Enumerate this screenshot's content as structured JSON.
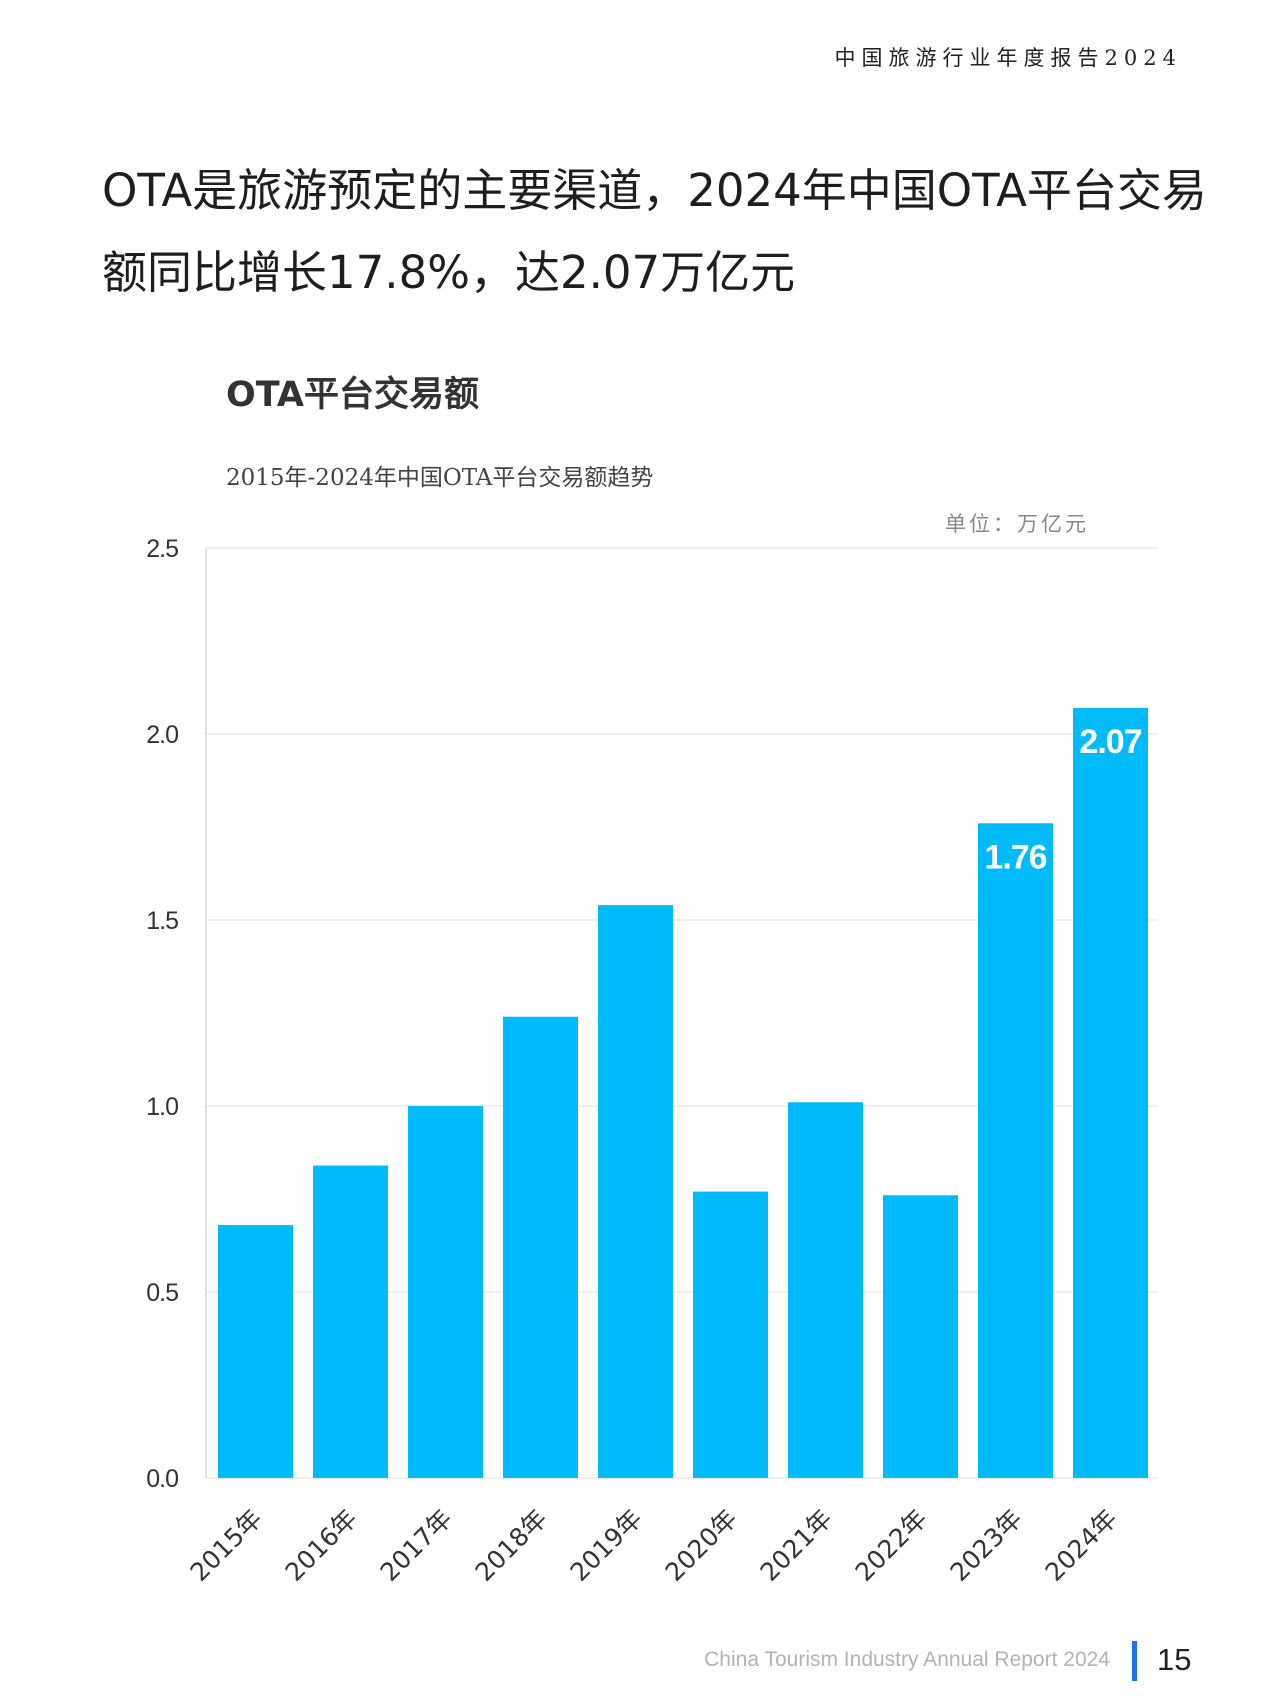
{
  "header": {
    "report_title": "中国旅游行业年度报告2024"
  },
  "headline": "OTA是旅游预定的主要渠道，2024年中国OTA平台交易额同比增长17.8%，达2.07万亿元",
  "chart_data": {
    "type": "bar",
    "title": "OTA平台交易额",
    "subtitle": "2015年-2024年中国OTA平台交易额趋势",
    "unit": "单位：万亿元",
    "categories": [
      "2015年",
      "2016年",
      "2017年",
      "2018年",
      "2019年",
      "2020年",
      "2021年",
      "2022年",
      "2023年",
      "2024年"
    ],
    "values": [
      0.68,
      0.84,
      1.0,
      1.24,
      1.54,
      0.77,
      1.01,
      0.76,
      1.76,
      2.07
    ],
    "data_labels": [
      "",
      "",
      "",
      "",
      "",
      "",
      "",
      "",
      "1.76",
      "2.07"
    ],
    "yticks": [
      "0.0",
      "0.5",
      "1.0",
      "1.5",
      "2.0",
      "2.5"
    ],
    "ylim": [
      0,
      2.5
    ],
    "grid": true,
    "bar_color": "#00bbf9",
    "label_color": "#ffffff"
  },
  "footer": {
    "text": "China Tourism Industry Annual Report 2024",
    "page_number": "15",
    "accent_color": "#1a73e8"
  }
}
